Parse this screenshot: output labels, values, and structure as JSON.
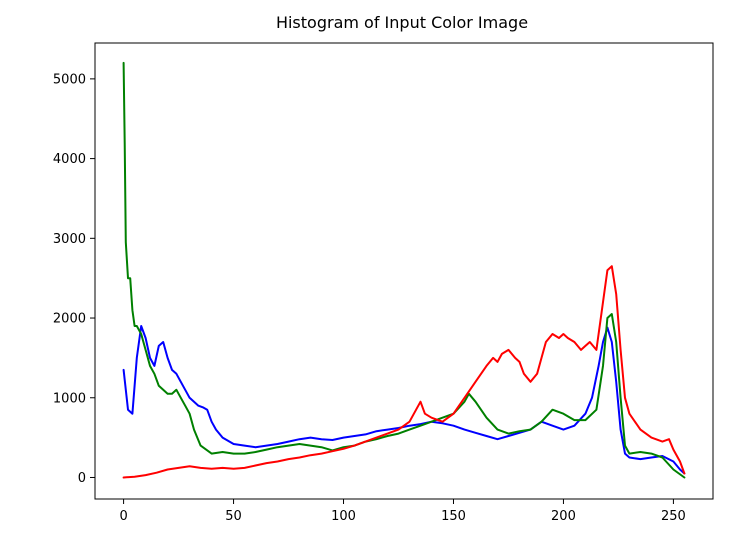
{
  "chart_data": {
    "type": "line",
    "title": "Histogram of Input Color Image",
    "xlabel": "",
    "ylabel": "",
    "xlim": [
      -13,
      268
    ],
    "ylim": [
      -270,
      5450
    ],
    "xticks": [
      0,
      50,
      100,
      150,
      200,
      250
    ],
    "yticks": [
      0,
      1000,
      2000,
      3000,
      4000,
      5000
    ],
    "grid": false,
    "series": [
      {
        "color": "#0000ff",
        "x": [
          0,
          2,
          4,
          6,
          8,
          10,
          12,
          14,
          16,
          18,
          20,
          22,
          24,
          26,
          28,
          30,
          32,
          34,
          36,
          38,
          40,
          42,
          45,
          50,
          55,
          60,
          65,
          70,
          75,
          80,
          85,
          90,
          95,
          100,
          105,
          110,
          115,
          120,
          125,
          130,
          135,
          140,
          145,
          150,
          155,
          160,
          165,
          170,
          175,
          180,
          185,
          190,
          195,
          200,
          205,
          210,
          213,
          216,
          218,
          220,
          222,
          224,
          226,
          228,
          230,
          235,
          240,
          245,
          250,
          253,
          255
        ],
        "y": [
          1350,
          850,
          800,
          1500,
          1900,
          1750,
          1500,
          1400,
          1650,
          1700,
          1500,
          1350,
          1300,
          1200,
          1100,
          1000,
          950,
          900,
          880,
          850,
          700,
          600,
          500,
          420,
          400,
          380,
          400,
          420,
          450,
          480,
          500,
          480,
          470,
          500,
          520,
          540,
          580,
          600,
          620,
          650,
          670,
          700,
          680,
          650,
          600,
          560,
          520,
          480,
          520,
          560,
          600,
          700,
          650,
          600,
          650,
          800,
          1000,
          1400,
          1700,
          1880,
          1700,
          1200,
          600,
          300,
          250,
          230,
          250,
          270,
          200,
          100,
          50
        ]
      },
      {
        "color": "#008000",
        "x": [
          0,
          0.5,
          1,
          2,
          3,
          4,
          5,
          6,
          7,
          8,
          9,
          10,
          12,
          14,
          16,
          18,
          20,
          22,
          24,
          26,
          28,
          30,
          32,
          35,
          40,
          45,
          50,
          55,
          60,
          65,
          70,
          75,
          80,
          85,
          90,
          95,
          100,
          105,
          110,
          115,
          120,
          125,
          130,
          135,
          140,
          145,
          150,
          155,
          157,
          160,
          165,
          170,
          175,
          180,
          185,
          190,
          195,
          200,
          205,
          210,
          215,
          218,
          220,
          222,
          224,
          226,
          228,
          230,
          235,
          240,
          245,
          250,
          255
        ],
        "y": [
          5200,
          4200,
          2950,
          2500,
          2500,
          2100,
          1900,
          1900,
          1850,
          1800,
          1700,
          1600,
          1400,
          1300,
          1150,
          1100,
          1050,
          1050,
          1100,
          1000,
          900,
          800,
          600,
          400,
          300,
          320,
          300,
          300,
          320,
          350,
          380,
          400,
          420,
          400,
          380,
          340,
          380,
          400,
          450,
          480,
          520,
          550,
          600,
          650,
          700,
          750,
          800,
          950,
          1050,
          950,
          750,
          600,
          550,
          580,
          600,
          700,
          850,
          800,
          720,
          720,
          850,
          1400,
          2000,
          2050,
          1700,
          1000,
          400,
          300,
          320,
          300,
          250,
          100,
          0
        ]
      },
      {
        "color": "#ff0000",
        "x": [
          0,
          5,
          10,
          15,
          20,
          25,
          30,
          35,
          40,
          45,
          50,
          55,
          60,
          65,
          70,
          75,
          80,
          85,
          90,
          95,
          100,
          105,
          110,
          115,
          120,
          125,
          130,
          133,
          135,
          137,
          140,
          145,
          150,
          155,
          160,
          165,
          168,
          170,
          172,
          175,
          178,
          180,
          182,
          185,
          188,
          190,
          192,
          195,
          198,
          200,
          202,
          205,
          208,
          210,
          212,
          215,
          218,
          220,
          222,
          224,
          226,
          228,
          230,
          235,
          240,
          245,
          248,
          250,
          253,
          255
        ],
        "y": [
          0,
          10,
          30,
          60,
          100,
          120,
          140,
          120,
          110,
          120,
          110,
          120,
          150,
          180,
          200,
          230,
          250,
          280,
          300,
          330,
          360,
          400,
          450,
          500,
          550,
          600,
          700,
          850,
          950,
          800,
          750,
          700,
          800,
          1000,
          1200,
          1400,
          1500,
          1450,
          1550,
          1600,
          1500,
          1450,
          1300,
          1200,
          1300,
          1500,
          1700,
          1800,
          1750,
          1800,
          1750,
          1700,
          1600,
          1650,
          1700,
          1600,
          2200,
          2600,
          2650,
          2300,
          1600,
          1000,
          800,
          600,
          500,
          450,
          480,
          350,
          200,
          50
        ]
      }
    ]
  }
}
